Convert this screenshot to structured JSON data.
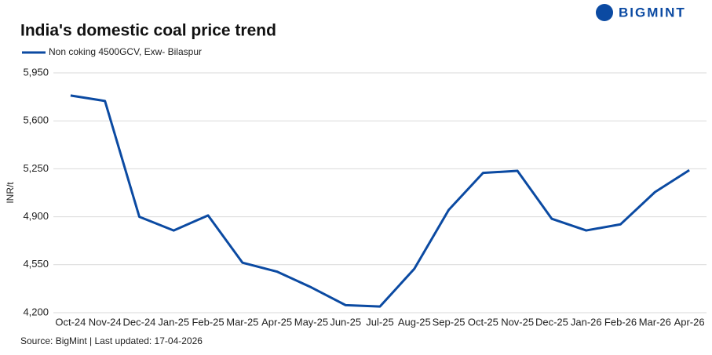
{
  "brand": "BIGMINT",
  "chart_data": {
    "type": "line",
    "title": "India's domestic coal price trend",
    "ylabel": "INR/t",
    "source": "Source: BigMint | Last updated: 17-04-2026",
    "categories": [
      "Oct-24",
      "Nov-24",
      "Dec-24",
      "Jan-25",
      "Feb-25",
      "Mar-25",
      "Apr-25",
      "May-25",
      "Jun-25",
      "Jul-25",
      "Aug-25",
      "Sep-25",
      "Oct-25",
      "Nov-25",
      "Dec-25",
      "Jan-26",
      "Feb-26",
      "Mar-26",
      "Apr-26"
    ],
    "series": [
      {
        "name": "Non coking 4500GCV, Exw- Bilaspur",
        "color": "#0b4aa2",
        "values": [
          5785,
          5745,
          4900,
          4800,
          4910,
          4565,
          4500,
          4385,
          4255,
          4245,
          4520,
          4950,
          5220,
          5235,
          4885,
          4800,
          4845,
          5080,
          5240
        ]
      }
    ],
    "ylim": [
      4200,
      5950
    ],
    "yticks": [
      {
        "value": 4200,
        "label": "4,200"
      },
      {
        "value": 4550,
        "label": "4,550"
      },
      {
        "value": 4900,
        "label": "4,900"
      },
      {
        "value": 5250,
        "label": "5,250"
      },
      {
        "value": 5600,
        "label": "5,600"
      },
      {
        "value": 5950,
        "label": "5,950"
      }
    ],
    "grid": true
  }
}
